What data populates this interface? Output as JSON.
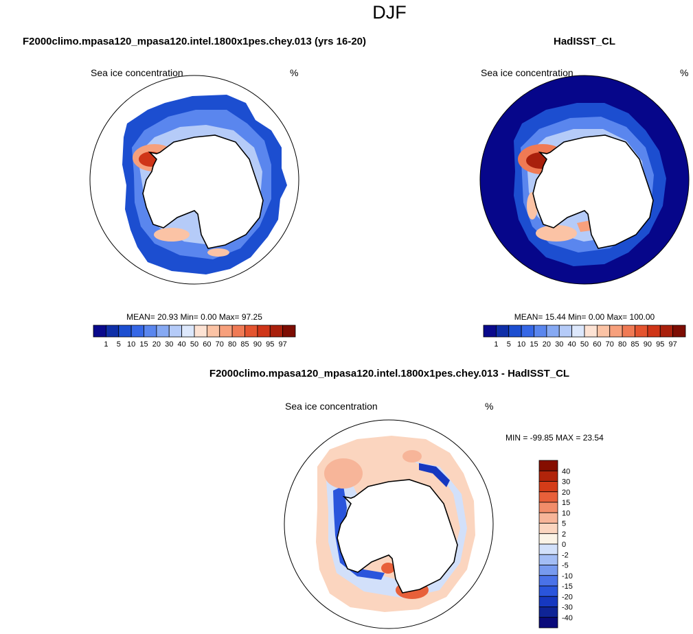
{
  "figure": {
    "title": "DJF"
  },
  "colors": {
    "panel_scale": [
      "#0a0a8c",
      "#0f2fa8",
      "#1c4ed0",
      "#3567e6",
      "#5a86ee",
      "#86a9f3",
      "#b5cbf8",
      "#dde8fc",
      "#fde3d4",
      "#fbc3a5",
      "#f7a07c",
      "#f07a54",
      "#e4542f",
      "#cf3518",
      "#a9200c",
      "#7d0d03"
    ],
    "diff_scale": [
      "#0a0a7a",
      "#0f2496",
      "#1638c0",
      "#2a55dc",
      "#4a72e8",
      "#779aef",
      "#a3bdf5",
      "#d2e0fa",
      "#fbf3e6",
      "#fbd5bf",
      "#f7b599",
      "#f28d6a",
      "#e8603a",
      "#d43c18",
      "#b1240a",
      "#850e00"
    ],
    "ocean_fill": "#06068a",
    "land_fill": "#ffffff",
    "coast": "#000000"
  },
  "chart_data": [
    {
      "type": "heatmap",
      "projection": "south-polar-stereographic",
      "title": "F2000climo.mpasa120_mpasa120.intel.1800x1pes.chey.013 (yrs 16-20)",
      "variable": "Sea ice concentration",
      "units": "%",
      "stats": "MEAN=  20.93  Min=    0.00  Max=  97.25",
      "mean": 20.93,
      "min": 0.0,
      "max": 97.25,
      "levels": [
        "1",
        "5",
        "10",
        "15",
        "20",
        "30",
        "40",
        "50",
        "60",
        "70",
        "80",
        "85",
        "90",
        "95",
        "97"
      ],
      "colorbar": "horizontal-bottom"
    },
    {
      "type": "heatmap",
      "projection": "south-polar-stereographic",
      "title": "HadISST_CL",
      "variable": "Sea ice concentration",
      "units": "%",
      "stats": "MEAN=  15.44  Min=    0.00  Max= 100.00",
      "mean": 15.44,
      "min": 0.0,
      "max": 100.0,
      "levels": [
        "1",
        "5",
        "10",
        "15",
        "20",
        "30",
        "40",
        "50",
        "60",
        "70",
        "80",
        "85",
        "90",
        "95",
        "97"
      ],
      "colorbar": "horizontal-bottom"
    },
    {
      "type": "heatmap",
      "projection": "south-polar-stereographic",
      "title": "F2000climo.mpasa120_mpasa120.intel.1800x1pes.chey.013 - HadISST_CL",
      "variable": "Sea ice concentration",
      "units": "%",
      "stats": "MIN = -99.85 MAX =  23.54",
      "min": -99.85,
      "max": 23.54,
      "levels": [
        "40",
        "30",
        "20",
        "15",
        "10",
        "5",
        "2",
        "0",
        "-2",
        "-5",
        "-10",
        "-15",
        "-20",
        "-30",
        "-40"
      ],
      "colorbar": "vertical-right"
    }
  ]
}
